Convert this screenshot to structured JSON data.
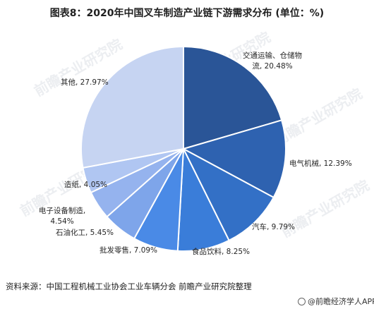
{
  "title": "图表8：2020年中国叉车制造产业链下游需求分布 (单位：%)",
  "source": "资料来源：中国工程机械工业协会工业车辆分会 前瞻产业研究院整理",
  "brand": "@前瞻经济学人APP",
  "watermark": "前瞻产业研究院",
  "chart_data": {
    "type": "pie",
    "unit": "%",
    "start_angle_deg": 0,
    "direction": "clockwise",
    "legend": "none",
    "slices": [
      {
        "label": "交通运输、仓储物流",
        "value": 20.48,
        "value_label": "20.48%",
        "color": "#2a5597"
      },
      {
        "label": "电气机械",
        "value": 12.39,
        "value_label": "12.39%",
        "color": "#2e62b0"
      },
      {
        "label": "汽车",
        "value": 9.79,
        "value_label": "9.79%",
        "color": "#3370c6"
      },
      {
        "label": "食品饮料",
        "value": 8.25,
        "value_label": "8.25%",
        "color": "#3a7dd9"
      },
      {
        "label": "批发零售",
        "value": 7.09,
        "value_label": "7.09%",
        "color": "#4a8ae6"
      },
      {
        "label": "石油化工",
        "value": 5.45,
        "value_label": "5.45%",
        "color": "#7ea5ea"
      },
      {
        "label": "电子设备制造",
        "value": 4.54,
        "value_label": "4.54%",
        "color": "#95b3ee"
      },
      {
        "label": "造纸",
        "value": 4.05,
        "value_label": "4.05%",
        "color": "#b0c6f2"
      },
      {
        "label": "其他",
        "value": 27.97,
        "value_label": "27.97%",
        "color": "#c6d4f2"
      }
    ]
  }
}
